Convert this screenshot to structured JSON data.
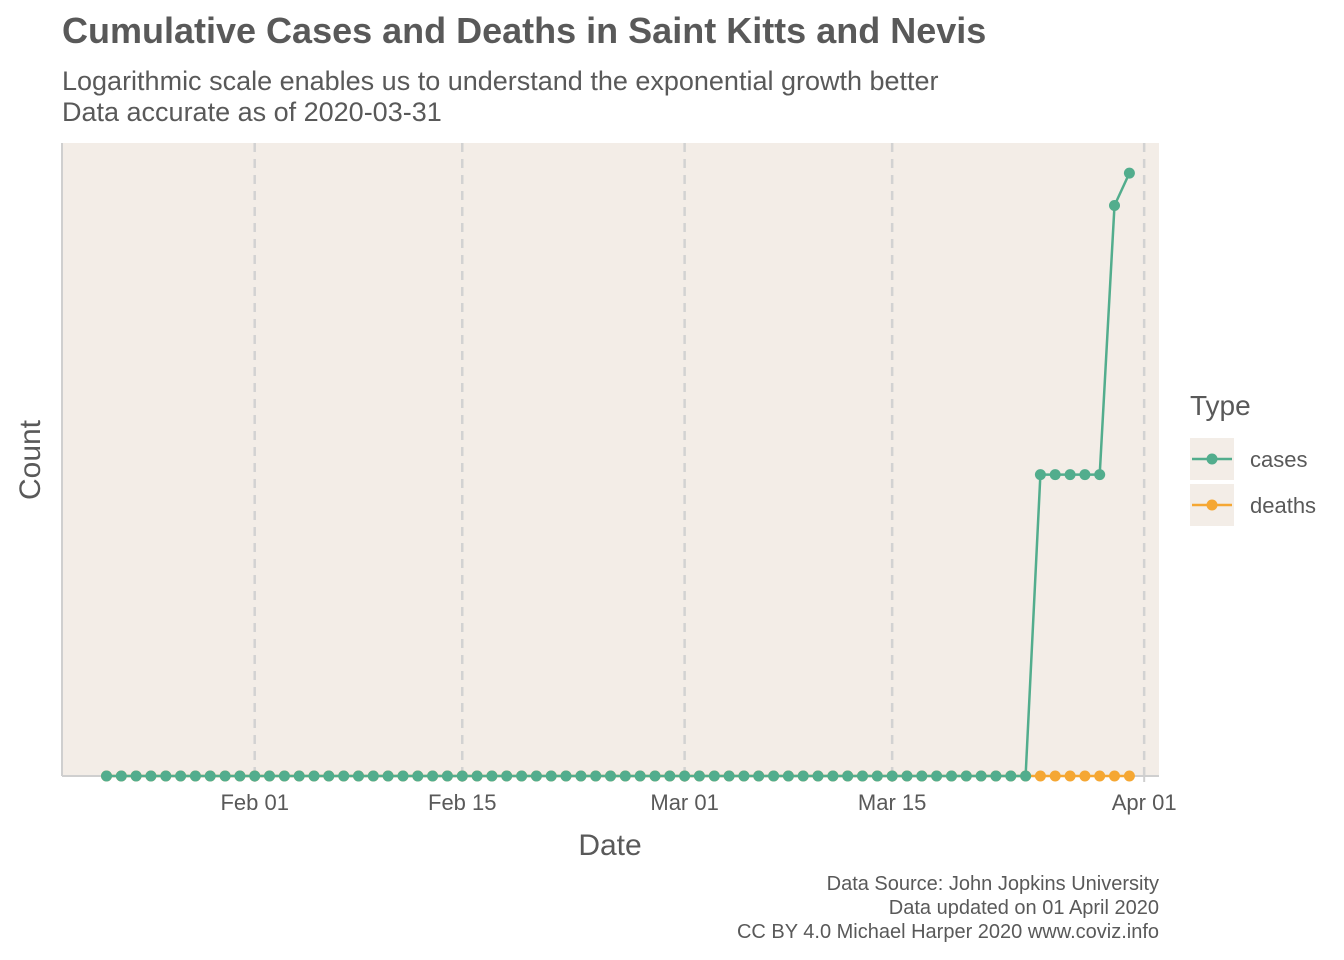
{
  "header": {
    "title": "Cumulative Cases and Deaths in Saint Kitts and Nevis",
    "subtitle_line1": "Logarithmic scale enables us to understand the exponential growth better",
    "subtitle_line2": "Data accurate as of 2020-03-31"
  },
  "caption": {
    "line1": "Data Source: John Jopkins University",
    "line2": "Data updated on 01 April 2020",
    "line3": "CC BY 4.0 Michael Harper 2020 www.coviz.info"
  },
  "legend": {
    "title": "Type",
    "items": [
      {
        "label": "cases",
        "color": "#52ad8d"
      },
      {
        "label": "deaths",
        "color": "#f5a733"
      }
    ]
  },
  "chart_data": {
    "type": "line",
    "xlabel": "Date",
    "ylabel": "Count",
    "y_scale": "log",
    "y_tick_labels": "none",
    "grid": "vertical dashed at x ticks",
    "legend_position": "right",
    "panel_color": "#f3ede7",
    "x_range": [
      "2020-01-19",
      "2020-04-02"
    ],
    "x_ticks": [
      {
        "date": "2020-02-01",
        "label": "Feb 01"
      },
      {
        "date": "2020-02-15",
        "label": "Feb 15"
      },
      {
        "date": "2020-03-01",
        "label": "Mar 01"
      },
      {
        "date": "2020-03-15",
        "label": "Mar 15"
      },
      {
        "date": "2020-04-01",
        "label": "Apr 01"
      }
    ],
    "date_start": "2020-01-22",
    "date_end": "2020-03-31",
    "series": [
      {
        "name": "cases",
        "color": "#52ad8d",
        "values": [
          0,
          0,
          0,
          0,
          0,
          0,
          0,
          0,
          0,
          0,
          0,
          0,
          0,
          0,
          0,
          0,
          0,
          0,
          0,
          0,
          0,
          0,
          0,
          0,
          0,
          0,
          0,
          0,
          0,
          0,
          0,
          0,
          0,
          0,
          0,
          0,
          0,
          0,
          0,
          0,
          0,
          0,
          0,
          0,
          0,
          0,
          0,
          0,
          0,
          0,
          0,
          0,
          0,
          0,
          0,
          0,
          0,
          0,
          0,
          0,
          0,
          0,
          0,
          2,
          2,
          2,
          2,
          2,
          7,
          8
        ]
      },
      {
        "name": "deaths",
        "color": "#f5a733",
        "values": [
          0,
          0,
          0,
          0,
          0,
          0,
          0,
          0,
          0,
          0,
          0,
          0,
          0,
          0,
          0,
          0,
          0,
          0,
          0,
          0,
          0,
          0,
          0,
          0,
          0,
          0,
          0,
          0,
          0,
          0,
          0,
          0,
          0,
          0,
          0,
          0,
          0,
          0,
          0,
          0,
          0,
          0,
          0,
          0,
          0,
          0,
          0,
          0,
          0,
          0,
          0,
          0,
          0,
          0,
          0,
          0,
          0,
          0,
          0,
          0,
          0,
          0,
          0,
          0,
          0,
          0,
          0,
          0,
          0,
          0
        ]
      }
    ]
  }
}
